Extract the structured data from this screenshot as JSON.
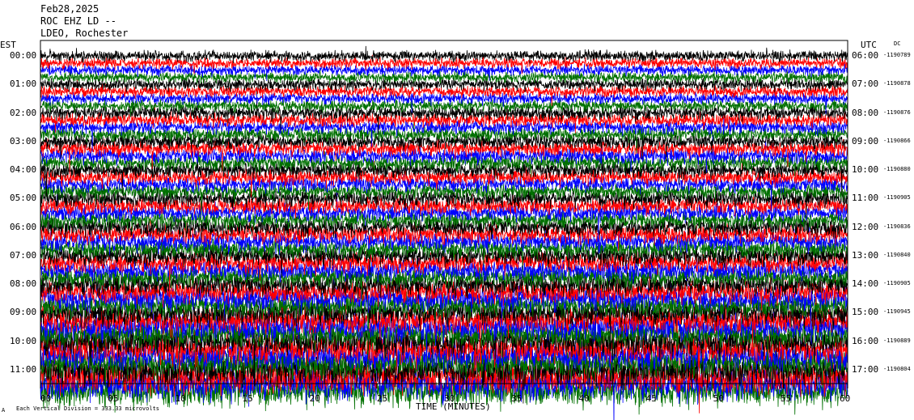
{
  "header": {
    "date": "Feb28,2025",
    "station": "ROC EHZ LD --",
    "location": "LDEO, Rochester"
  },
  "left_axis_label": "EST",
  "right_axis_label": "UTC",
  "dc_label": "DC",
  "footer_mark": "A",
  "footnote": "Each Vertical Division = 333.33 microvolts",
  "chart_data": {
    "type": "line",
    "title": "",
    "xlabel": "TIME (MINUTES)",
    "xlim": [
      0,
      60
    ],
    "x_ticks": [
      "00",
      "05",
      "10",
      "15",
      "20",
      "25",
      "30",
      "35",
      "40",
      "45",
      "50",
      "55",
      "60"
    ],
    "trace_colors": [
      "#000000",
      "#ff0000",
      "#0000ff",
      "#007000"
    ],
    "rows": [
      {
        "est": "00:00",
        "utc": "06:00",
        "dc": "-1190789",
        "amplitude": 0.35
      },
      {
        "est": "01:00",
        "utc": "07:00",
        "dc": "-1190878",
        "amplitude": 0.38
      },
      {
        "est": "02:00",
        "utc": "08:00",
        "dc": "-1190876",
        "amplitude": 0.45
      },
      {
        "est": "03:00",
        "utc": "09:00",
        "dc": "-1190866",
        "amplitude": 0.5
      },
      {
        "est": "04:00",
        "utc": "10:00",
        "dc": "-1190880",
        "amplitude": 0.5
      },
      {
        "est": "05:00",
        "utc": "11:00",
        "dc": "-1190905",
        "amplitude": 0.55
      },
      {
        "est": "06:00",
        "utc": "12:00",
        "dc": "-1190836",
        "amplitude": 0.6
      },
      {
        "est": "07:00",
        "utc": "13:00",
        "dc": "-1190840",
        "amplitude": 0.65
      },
      {
        "est": "08:00",
        "utc": "14:00",
        "dc": "-1190905",
        "amplitude": 0.75
      },
      {
        "est": "09:00",
        "utc": "15:00",
        "dc": "-1190945",
        "amplitude": 0.85
      },
      {
        "est": "10:00",
        "utc": "16:00",
        "dc": "-1190889",
        "amplitude": 0.95
      },
      {
        "est": "11:00",
        "utc": "17:00",
        "dc": "-1190804",
        "amplitude": 1.05
      }
    ]
  }
}
